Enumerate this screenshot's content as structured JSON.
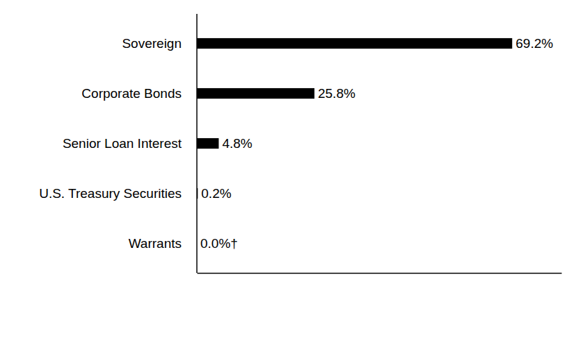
{
  "chart_data": {
    "type": "bar",
    "orientation": "horizontal",
    "categories": [
      "Sovereign",
      "Corporate Bonds",
      "Senior Loan Interest",
      "U.S. Treasury Securities",
      "Warrants"
    ],
    "values": [
      69.2,
      25.8,
      4.8,
      0.2,
      0.0
    ],
    "value_labels": [
      "69.2%",
      "25.8%",
      "4.8%",
      "0.2%",
      "0.0%†"
    ],
    "color": "#000000",
    "xlim": [
      0,
      80
    ],
    "grid": false,
    "data_labels": true,
    "tick_labels": "y"
  }
}
